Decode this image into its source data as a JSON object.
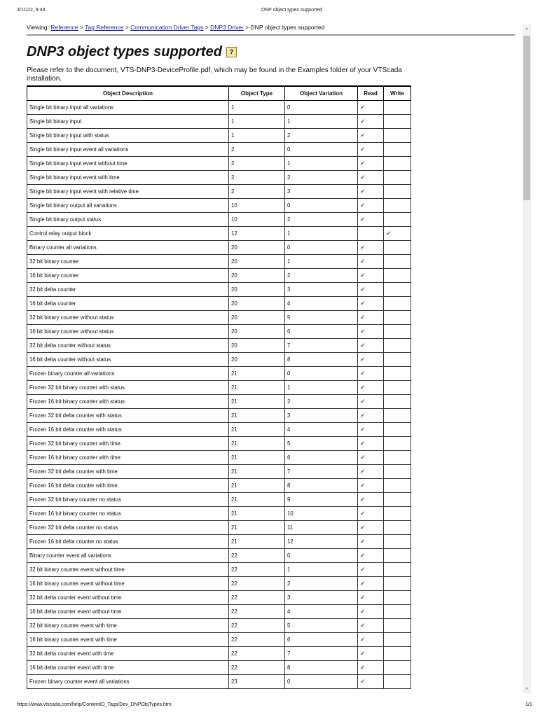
{
  "print_header": {
    "date": "3/11/22, 9:43",
    "title": "DNP object types supported"
  },
  "breadcrumb": {
    "prefix": "Viewing:",
    "links": [
      "Reference",
      "Tag Reference",
      "Communication Driver Tags",
      "DNP3 Driver"
    ],
    "separator": ">",
    "current": "DNP object types supported"
  },
  "page": {
    "title": "DNP3 object types supported",
    "help_label": "?",
    "intro": "Please refer to the document, VTS-DNP3-DeviceProfile.pdf, which may be found in the Examples folder of your VTScada installation."
  },
  "table": {
    "headers": [
      "Object Description",
      "Object Type",
      "Object Variation",
      "Read",
      "Write"
    ],
    "check_symbol": "✓",
    "rows": [
      [
        "Single bit binary input all variations",
        "1",
        "0",
        "✓",
        ""
      ],
      [
        "Single bit binary input",
        "1",
        "1",
        "✓",
        ""
      ],
      [
        "Single bit binary input with status",
        "1",
        "2",
        "✓",
        ""
      ],
      [
        "Single bit binary input event all variations",
        "2",
        "0",
        "✓",
        ""
      ],
      [
        "Single bit binary input event without time",
        "2",
        "1",
        "✓",
        ""
      ],
      [
        "Single bit binary input event with time",
        "2",
        "2",
        "✓",
        ""
      ],
      [
        "Single bit binary input event with relative time",
        "2",
        "3",
        "✓",
        ""
      ],
      [
        "Single bit binary output all variations",
        "10",
        "0",
        "✓",
        ""
      ],
      [
        "Single bit binary output status",
        "10",
        "2",
        "✓",
        ""
      ],
      [
        "Control relay output block",
        "12",
        "1",
        "",
        "✓"
      ],
      [
        "Binary counter all variations",
        "20",
        "0",
        "✓",
        ""
      ],
      [
        "32 bit binary counter",
        "20",
        "1",
        "✓",
        ""
      ],
      [
        "16 bit binary counter",
        "20",
        "2",
        "✓",
        ""
      ],
      [
        "32 bit delta counter",
        "20",
        "3",
        "✓",
        ""
      ],
      [
        "16 bit delta counter",
        "20",
        "4",
        "✓",
        ""
      ],
      [
        "32 bit binary counter without status",
        "20",
        "5",
        "✓",
        ""
      ],
      [
        "16 bit binary counter without status",
        "20",
        "6",
        "✓",
        ""
      ],
      [
        "32 bit delta counter without status",
        "20",
        "7",
        "✓",
        ""
      ],
      [
        "16 bit delta counter without status",
        "20",
        "8",
        "✓",
        ""
      ],
      [
        "Frozen binary counter all variations",
        "21",
        "0",
        "✓",
        ""
      ],
      [
        "Frozen 32 bit binary counter with status",
        "21",
        "1",
        "✓",
        ""
      ],
      [
        "Frozen 16 bit binary counter with status",
        "21",
        "2",
        "✓",
        ""
      ],
      [
        "Frozen 32 bit delta counter with status",
        "21",
        "3",
        "✓",
        ""
      ],
      [
        "Frozen 16 bit delta counter with status",
        "21",
        "4",
        "✓",
        ""
      ],
      [
        "Frozen 32 bit binary counter with time",
        "21",
        "5",
        "✓",
        ""
      ],
      [
        "Frozen 16 bit binary counter with time",
        "21",
        "6",
        "✓",
        ""
      ],
      [
        "Frozen 32 bit delta counter with time",
        "21",
        "7",
        "✓",
        ""
      ],
      [
        "Frozen 16 bit delta counter with time",
        "21",
        "8",
        "✓",
        ""
      ],
      [
        "Frozen 32 bit binary counter no status",
        "21",
        "9",
        "✓",
        ""
      ],
      [
        "Frozen 16 bit binary counter no status",
        "21",
        "10",
        "✓",
        ""
      ],
      [
        "Frozen 32 bit delta counter no status",
        "21",
        "11",
        "✓",
        ""
      ],
      [
        "Frozen 16 bit delta counter no status",
        "21",
        "12",
        "✓",
        ""
      ],
      [
        "Binary counter event all variations",
        "22",
        "0",
        "✓",
        ""
      ],
      [
        "32 bit binary counter event without time",
        "22",
        "1",
        "✓",
        ""
      ],
      [
        "16 bit binary counter event without time",
        "22",
        "2",
        "✓",
        ""
      ],
      [
        "32 bit delta counter event without time",
        "22",
        "3",
        "✓",
        ""
      ],
      [
        "16 bit delta counter event without time",
        "22",
        "4",
        "✓",
        ""
      ],
      [
        "32 bit binary counter event with time",
        "22",
        "5",
        "✓",
        ""
      ],
      [
        "16 bit binary counter event with time",
        "22",
        "6",
        "✓",
        ""
      ],
      [
        "32 bit delta counter event with time",
        "22",
        "7",
        "✓",
        ""
      ],
      [
        "16 bit delta counter event with time",
        "22",
        "8",
        "✓",
        ""
      ],
      [
        "Frozen binary counter event all variations",
        "23",
        "0",
        "✓",
        ""
      ]
    ]
  },
  "print_footer": {
    "url": "https://www.vtscada.com/help/Content/D_Tags/Dev_DNPObjTypes.htm",
    "page": "1/1"
  }
}
